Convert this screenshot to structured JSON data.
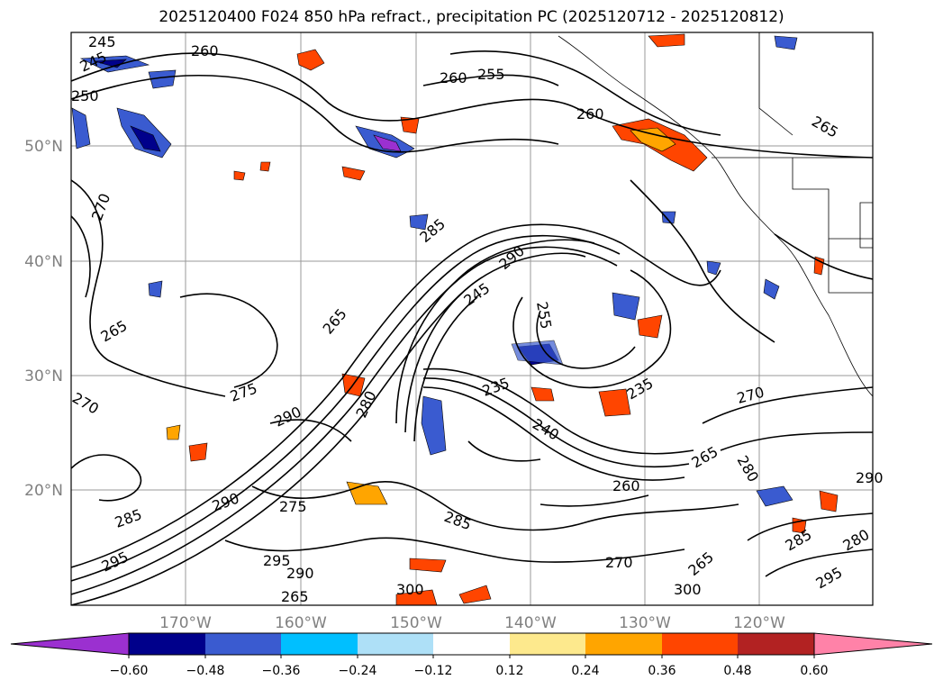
{
  "title": "2025120400 F024 850 hPa refract., precipitation PC (2025120712 - 2025120812)",
  "latitude_labels": [
    "50°N",
    "40°N",
    "30°N",
    "20°N"
  ],
  "longitude_labels": [
    "170°W",
    "160°W",
    "150°W",
    "140°W",
    "130°W",
    "120°W"
  ],
  "contour_labels": [
    "245",
    "245",
    "260",
    "260",
    "255",
    "260",
    "265",
    "250",
    "270",
    "265",
    "275",
    "270",
    "290",
    "280",
    "265",
    "285",
    "290",
    "245",
    "235",
    "240",
    "235",
    "270",
    "260",
    "265",
    "280",
    "290",
    "285",
    "280",
    "295",
    "285",
    "290",
    "270",
    "265",
    "265",
    "300",
    "295",
    "290",
    "275",
    "300",
    "285",
    "295",
    "255"
  ],
  "colorbar": {
    "ticks": [
      "−0.60",
      "−0.48",
      "−0.36",
      "−0.24",
      "−0.12",
      "0.12",
      "0.24",
      "0.36",
      "0.48",
      "0.60"
    ],
    "colors": [
      "#9b30d0",
      "#00008b",
      "#3a5bd0",
      "#00bfff",
      "#aee0f7",
      "#ffffff",
      "#fde98d",
      "#ffa500",
      "#ff4500",
      "#b22222",
      "#ff82a8"
    ]
  }
}
